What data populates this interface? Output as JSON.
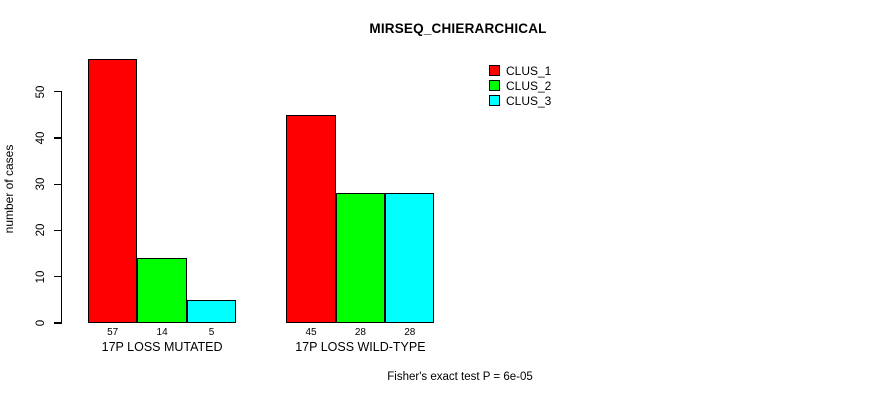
{
  "chart_data": {
    "type": "bar",
    "title": "MIRSEQ_CHIERARCHICAL",
    "ylabel": "number of cases",
    "xlabel": "",
    "categories": [
      "17P LOSS MUTATED",
      "17P LOSS WILD-TYPE"
    ],
    "series": [
      {
        "name": "CLUS_1",
        "color": "#FF0000",
        "values": [
          57,
          45
        ]
      },
      {
        "name": "CLUS_2",
        "color": "#00FF00",
        "values": [
          14,
          28
        ]
      },
      {
        "name": "CLUS_3",
        "color": "#00FFFF",
        "values": [
          5,
          28
        ]
      }
    ],
    "bar_value_labels": [
      [
        57,
        14,
        5
      ],
      [
        45,
        28,
        28
      ]
    ],
    "yticks": [
      0,
      10,
      20,
      30,
      40,
      50
    ],
    "ylim": [
      0,
      57
    ],
    "grid": false,
    "legend_position": "top-right",
    "annotation": "Fisher's exact test P = 6e-05"
  }
}
